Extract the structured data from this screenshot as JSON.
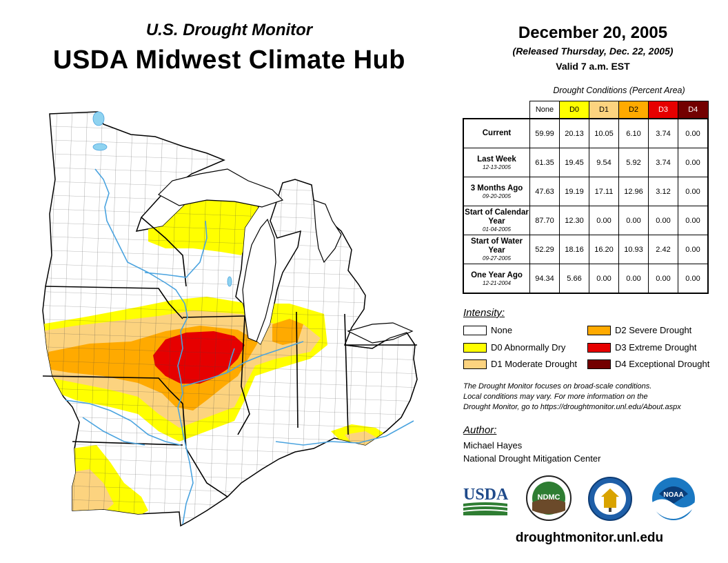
{
  "header": {
    "subtitle": "U.S. Drought Monitor",
    "title": "USDA Midwest Climate Hub",
    "date": "December 20, 2005",
    "released": "(Released Thursday, Dec. 22, 2005)",
    "valid": "Valid 7 a.m. EST"
  },
  "table": {
    "caption": "Drought Conditions (Percent Area)",
    "columns": [
      "None",
      "D0",
      "D1",
      "D2",
      "D3",
      "D4"
    ],
    "column_colors": [
      "#ffffff",
      "#ffff00",
      "#fcd37f",
      "#ffaa00",
      "#e60000",
      "#730000"
    ],
    "rows": [
      {
        "label": "Current",
        "date": "",
        "values": [
          "59.99",
          "20.13",
          "10.05",
          "6.10",
          "3.74",
          "0.00"
        ]
      },
      {
        "label": "Last Week",
        "date": "12-13-2005",
        "values": [
          "61.35",
          "19.45",
          "9.54",
          "5.92",
          "3.74",
          "0.00"
        ]
      },
      {
        "label": "3 Months Ago",
        "date": "09-20-2005",
        "values": [
          "47.63",
          "19.19",
          "17.11",
          "12.96",
          "3.12",
          "0.00"
        ]
      },
      {
        "label": "Start of Calendar Year",
        "date": "01-04-2005",
        "values": [
          "87.70",
          "12.30",
          "0.00",
          "0.00",
          "0.00",
          "0.00"
        ]
      },
      {
        "label": "Start of Water Year",
        "date": "09-27-2005",
        "values": [
          "52.29",
          "18.16",
          "16.20",
          "10.93",
          "2.42",
          "0.00"
        ]
      },
      {
        "label": "One Year Ago",
        "date": "12-21-2004",
        "values": [
          "94.34",
          "5.66",
          "0.00",
          "0.00",
          "0.00",
          "0.00"
        ]
      }
    ]
  },
  "legend": {
    "title": "Intensity:",
    "items": [
      {
        "label": "None",
        "color": "#ffffff"
      },
      {
        "label": "D0 Abnormally Dry",
        "color": "#ffff00"
      },
      {
        "label": "D1 Moderate Drought",
        "color": "#fcd37f"
      },
      {
        "label": "D2 Severe Drought",
        "color": "#ffaa00"
      },
      {
        "label": "D3 Extreme Drought",
        "color": "#e60000"
      },
      {
        "label": "D4 Exceptional Drought",
        "color": "#730000"
      }
    ]
  },
  "note": {
    "line1": "The Drought Monitor focuses on broad-scale conditions.",
    "line2": "Local conditions may vary. For more information on the",
    "line3": "Drought Monitor, go to https://droughtmonitor.unl.edu/About.aspx"
  },
  "author": {
    "title": "Author:",
    "name": "Michael Hayes",
    "org": "National Drought Mitigation Center"
  },
  "logos": {
    "usda": "USDA",
    "ndmc": "NDMC",
    "noaa": "NOAA"
  },
  "website": "droughtmonitor.unl.edu",
  "colors": {
    "water": "#8fd3f0",
    "river": "#4aa3df",
    "border": "#000000"
  }
}
